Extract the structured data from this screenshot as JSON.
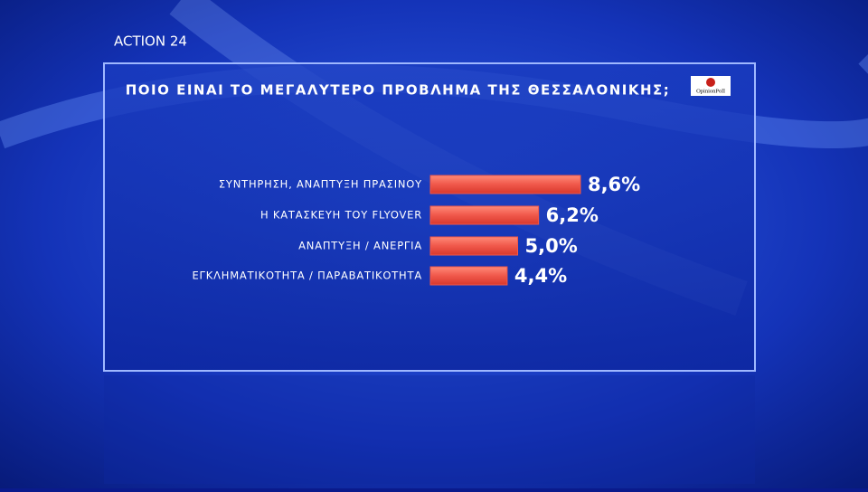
{
  "channel": "ACTION 24",
  "source": "OpinionPoll",
  "chart_data": {
    "type": "bar",
    "orientation": "horizontal",
    "title": "ΠΟΙΟ ΕΙΝΑΙ ΤΟ ΜΕΓΑΛΥΤΕΡΟ ΠΡΟΒΛΗΜΑ ΤΗΣ ΘΕΣΣΑΛΟΝΙΚΗΣ;",
    "categories": [
      "ΣΥΝΤΗΡΗΣΗ, ΑΝΑΠΤΥΞΗ ΠΡΑΣΙΝΟΥ",
      "Η ΚΑΤΑΣΚΕΥΗ ΤΟΥ FLYOVER",
      "ΑΝΑΠΤΥΞΗ / ΑΝΕΡΓΙΑ",
      "ΕΓΚΛΗΜΑΤΙΚΟΤΗΤΑ / ΠΑΡΑΒΑΤΙΚΟΤΗΤΑ"
    ],
    "values": [
      8.6,
      6.2,
      5.0,
      4.4
    ],
    "value_labels": [
      "8,6%",
      "6,2%",
      "5,0%",
      "4,4%"
    ],
    "color": "#f0584a"
  }
}
